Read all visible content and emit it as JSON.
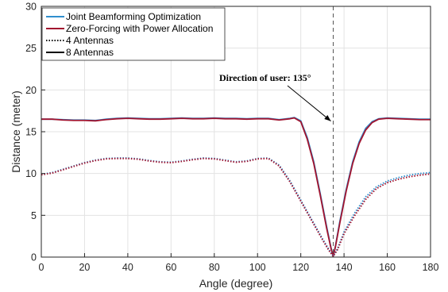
{
  "chart_data": {
    "type": "line",
    "xlabel": "Angle (degree)",
    "ylabel": "Distance (meter)",
    "xlim": [
      0,
      180
    ],
    "ylim": [
      0,
      30
    ],
    "xticks": [
      0,
      20,
      40,
      60,
      80,
      100,
      120,
      140,
      160,
      180
    ],
    "yticks": [
      0,
      5,
      10,
      15,
      20,
      25,
      30
    ],
    "grid": true,
    "legend_position": "top-left",
    "legend": [
      {
        "label": "Joint Beamforming Optimization",
        "color": "#2f8fce",
        "style": "solid"
      },
      {
        "label": "Zero-Forcing with Power Allocation",
        "color": "#a2142f",
        "style": "solid"
      },
      {
        "label": "4 Antennas",
        "color": "#000000",
        "style": "dotted"
      },
      {
        "label": "8 Antennas",
        "color": "#000000",
        "style": "solid"
      }
    ],
    "annotation": {
      "text": "Direction of user: 135°",
      "points_to": [
        135,
        15.8
      ],
      "vline_x": 135
    },
    "series": [
      {
        "name": "Joint Beamforming Optimization",
        "antennas": "8 Antennas",
        "color": "#2f8fce",
        "dash": "solid",
        "x": [
          0,
          5,
          10,
          15,
          20,
          25,
          30,
          35,
          40,
          45,
          50,
          55,
          60,
          65,
          70,
          75,
          80,
          85,
          90,
          95,
          100,
          105,
          110,
          115,
          117,
          120,
          123,
          126,
          129,
          132,
          134,
          135,
          136,
          138,
          141,
          144,
          147,
          150,
          153,
          156,
          160,
          165,
          170,
          175,
          180
        ],
        "y": [
          16.5,
          16.5,
          16.45,
          16.4,
          16.4,
          16.35,
          16.5,
          16.6,
          16.65,
          16.6,
          16.55,
          16.55,
          16.6,
          16.65,
          16.6,
          16.6,
          16.65,
          16.6,
          16.6,
          16.55,
          16.6,
          16.6,
          16.45,
          16.6,
          16.7,
          16.3,
          14.3,
          11.4,
          7.6,
          3.6,
          1.1,
          0.1,
          1.3,
          4.2,
          8.1,
          11.4,
          13.8,
          15.4,
          16.2,
          16.55,
          16.65,
          16.6,
          16.55,
          16.5,
          16.5
        ]
      },
      {
        "name": "Zero-Forcing with Power Allocation",
        "antennas": "8 Antennas",
        "color": "#a2142f",
        "dash": "solid",
        "x": [
          0,
          5,
          10,
          15,
          20,
          25,
          30,
          35,
          40,
          45,
          50,
          55,
          60,
          65,
          70,
          75,
          80,
          85,
          90,
          95,
          100,
          105,
          110,
          115,
          117,
          120,
          123,
          126,
          129,
          132,
          134,
          135,
          136,
          138,
          141,
          144,
          147,
          150,
          153,
          156,
          160,
          165,
          170,
          175,
          180
        ],
        "y": [
          16.5,
          16.5,
          16.4,
          16.35,
          16.35,
          16.3,
          16.45,
          16.55,
          16.6,
          16.55,
          16.5,
          16.5,
          16.55,
          16.6,
          16.55,
          16.55,
          16.6,
          16.55,
          16.55,
          16.5,
          16.55,
          16.55,
          16.4,
          16.55,
          16.65,
          16.2,
          14.1,
          11.2,
          7.4,
          3.4,
          1.0,
          0.1,
          1.2,
          4.0,
          7.9,
          11.2,
          13.6,
          15.2,
          16.1,
          16.5,
          16.6,
          16.55,
          16.5,
          16.45,
          16.45
        ]
      },
      {
        "name": "Joint Beamforming Optimization",
        "antennas": "4 Antennas",
        "color": "#2f8fce",
        "dash": "dotted",
        "x": [
          0,
          5,
          10,
          15,
          20,
          25,
          30,
          35,
          40,
          45,
          50,
          55,
          60,
          65,
          70,
          75,
          80,
          85,
          90,
          95,
          100,
          105,
          110,
          115,
          120,
          125,
          130,
          133,
          135,
          137,
          140,
          145,
          150,
          155,
          160,
          165,
          170,
          175,
          180
        ],
        "y": [
          9.9,
          10.1,
          10.5,
          10.9,
          11.3,
          11.6,
          11.8,
          11.85,
          11.85,
          11.75,
          11.55,
          11.4,
          11.35,
          11.5,
          11.7,
          11.85,
          11.8,
          11.6,
          11.4,
          11.5,
          11.8,
          11.85,
          11.0,
          9.1,
          6.8,
          4.5,
          2.2,
          0.9,
          0.1,
          1.0,
          3.0,
          5.3,
          7.2,
          8.4,
          9.1,
          9.5,
          9.8,
          10.0,
          10.1
        ]
      },
      {
        "name": "Zero-Forcing with Power Allocation",
        "antennas": "4 Antennas",
        "color": "#a2142f",
        "dash": "dotted",
        "x": [
          0,
          5,
          10,
          15,
          20,
          25,
          30,
          35,
          40,
          45,
          50,
          55,
          60,
          65,
          70,
          75,
          80,
          85,
          90,
          95,
          100,
          105,
          110,
          115,
          120,
          125,
          130,
          133,
          135,
          137,
          140,
          145,
          150,
          155,
          160,
          165,
          170,
          175,
          180
        ],
        "y": [
          9.85,
          10.05,
          10.45,
          10.85,
          11.25,
          11.55,
          11.75,
          11.8,
          11.8,
          11.7,
          11.5,
          11.35,
          11.3,
          11.45,
          11.65,
          11.8,
          11.75,
          11.55,
          11.35,
          11.45,
          11.75,
          11.8,
          10.9,
          9.0,
          6.7,
          4.4,
          2.1,
          0.8,
          0.1,
          0.9,
          2.8,
          5.0,
          6.9,
          8.2,
          8.9,
          9.3,
          9.6,
          9.8,
          9.95
        ]
      }
    ]
  }
}
